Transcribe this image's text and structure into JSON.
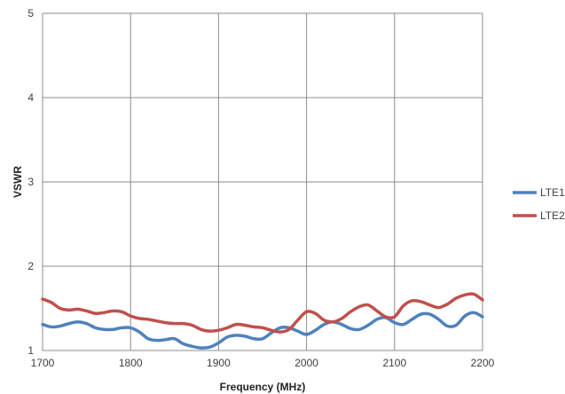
{
  "chart_data": {
    "type": "line",
    "title": "",
    "xlabel": "Frequency (MHz)",
    "ylabel": "VSWR",
    "xlim": [
      1700,
      2200
    ],
    "ylim": [
      1,
      5
    ],
    "xticks": [
      1700,
      1800,
      1900,
      2000,
      2100,
      2200
    ],
    "yticks": [
      1,
      2,
      3,
      4,
      5
    ],
    "grid": true,
    "legend_position": "right",
    "series": [
      {
        "name": "LTE1",
        "color": "#4f81bd",
        "x": [
          1700,
          1710,
          1720,
          1730,
          1740,
          1750,
          1760,
          1770,
          1780,
          1790,
          1800,
          1810,
          1820,
          1830,
          1840,
          1850,
          1860,
          1870,
          1880,
          1890,
          1900,
          1910,
          1920,
          1930,
          1940,
          1950,
          1960,
          1970,
          1980,
          1990,
          2000,
          2010,
          2020,
          2030,
          2040,
          2050,
          2060,
          2070,
          2080,
          2090,
          2100,
          2110,
          2120,
          2130,
          2140,
          2150,
          2160,
          2170,
          2180,
          2190,
          2200
        ],
        "y": [
          1.31,
          1.28,
          1.29,
          1.32,
          1.34,
          1.32,
          1.27,
          1.25,
          1.25,
          1.27,
          1.27,
          1.22,
          1.14,
          1.12,
          1.13,
          1.14,
          1.08,
          1.05,
          1.03,
          1.04,
          1.09,
          1.16,
          1.18,
          1.17,
          1.14,
          1.14,
          1.21,
          1.27,
          1.27,
          1.23,
          1.19,
          1.24,
          1.31,
          1.34,
          1.31,
          1.26,
          1.25,
          1.3,
          1.37,
          1.39,
          1.33,
          1.31,
          1.37,
          1.43,
          1.43,
          1.37,
          1.29,
          1.3,
          1.41,
          1.45,
          1.4
        ]
      },
      {
        "name": "LTE2",
        "color": "#c0504d",
        "x": [
          1700,
          1710,
          1720,
          1730,
          1740,
          1750,
          1760,
          1770,
          1780,
          1790,
          1800,
          1810,
          1820,
          1830,
          1840,
          1850,
          1860,
          1870,
          1880,
          1890,
          1900,
          1910,
          1920,
          1930,
          1940,
          1950,
          1960,
          1970,
          1980,
          1990,
          2000,
          2010,
          2020,
          2030,
          2040,
          2050,
          2060,
          2070,
          2080,
          2090,
          2100,
          2110,
          2120,
          2130,
          2140,
          2150,
          2160,
          2170,
          2180,
          2190,
          2200
        ],
        "y": [
          1.61,
          1.57,
          1.5,
          1.48,
          1.49,
          1.47,
          1.44,
          1.45,
          1.47,
          1.46,
          1.41,
          1.38,
          1.37,
          1.35,
          1.33,
          1.32,
          1.32,
          1.3,
          1.25,
          1.23,
          1.24,
          1.27,
          1.31,
          1.3,
          1.28,
          1.27,
          1.24,
          1.22,
          1.25,
          1.36,
          1.46,
          1.44,
          1.36,
          1.34,
          1.38,
          1.46,
          1.52,
          1.54,
          1.47,
          1.4,
          1.4,
          1.53,
          1.59,
          1.58,
          1.54,
          1.51,
          1.55,
          1.62,
          1.66,
          1.67,
          1.6
        ]
      }
    ]
  }
}
